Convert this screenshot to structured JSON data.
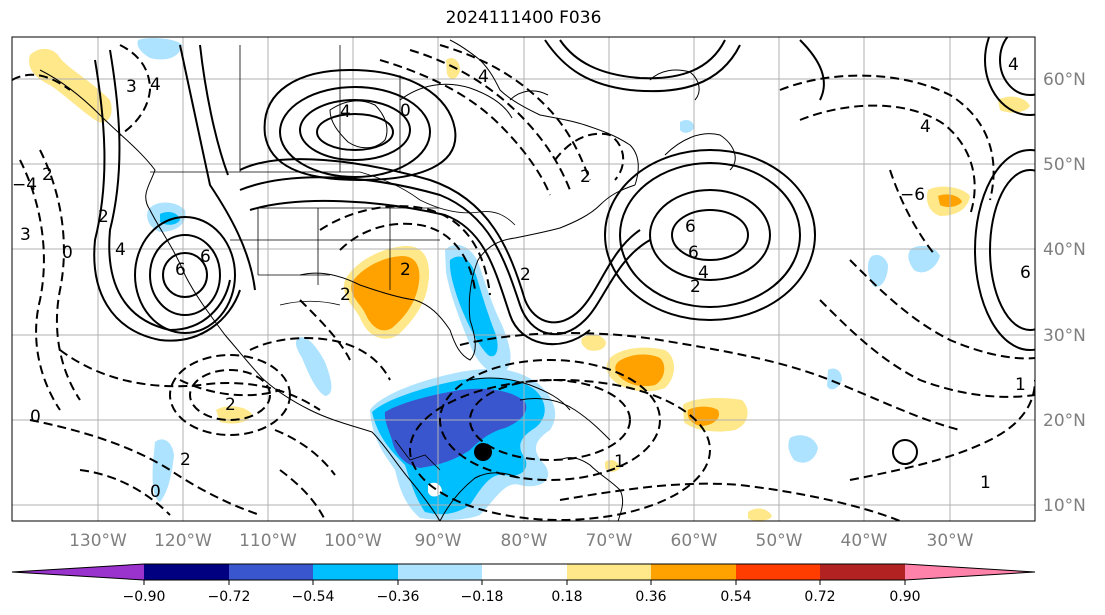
{
  "title": "2024111400 F036",
  "longitude_labels": [
    "130°W",
    "120°W",
    "110°W",
    "100°W",
    "90°W",
    "80°W",
    "70°W",
    "60°W",
    "50°W",
    "40°W",
    "30°W"
  ],
  "latitude_labels": [
    "60°N",
    "50°N",
    "40°N",
    "30°N",
    "20°N",
    "10°N"
  ],
  "colorbar": {
    "tick_labels": [
      "−0.90",
      "−0.72",
      "−0.54",
      "−0.36",
      "−0.18",
      "0.18",
      "0.36",
      "0.54",
      "0.72",
      "0.90"
    ],
    "colors": [
      "#9a32cd",
      "#000080",
      "#3a56cf",
      "#00bfff",
      "#ade3ff",
      "#ffffff",
      "#ffe88a",
      "#ffa200",
      "#ff3d00",
      "#b22222",
      "#ff82ab"
    ]
  },
  "contour_labels": [
    "4",
    "3",
    "2",
    "0",
    "4",
    "4",
    "2",
    "2",
    "6",
    "6",
    "2",
    "2",
    "2",
    "4",
    "6",
    "4",
    "2",
    "0",
    "−6",
    "4",
    "6",
    "2",
    "1",
    "1",
    "0",
    "2",
    "3",
    "0",
    "1",
    "4",
    "6",
    "−4"
  ],
  "storm_marker": "storm-center"
}
